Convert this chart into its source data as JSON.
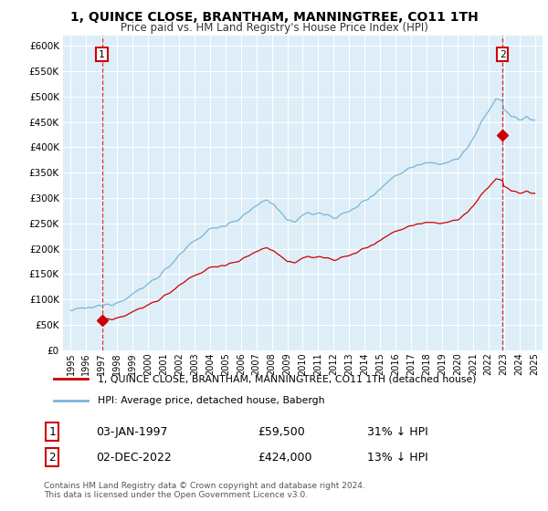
{
  "title": "1, QUINCE CLOSE, BRANTHAM, MANNINGTREE, CO11 1TH",
  "subtitle": "Price paid vs. HM Land Registry's House Price Index (HPI)",
  "legend_line1": "1, QUINCE CLOSE, BRANTHAM, MANNINGTREE, CO11 1TH (detached house)",
  "legend_line2": "HPI: Average price, detached house, Babergh",
  "sale1_date": "03-JAN-1997",
  "sale1_price": "£59,500",
  "sale1_hpi": "31% ↓ HPI",
  "sale2_date": "02-DEC-2022",
  "sale2_price": "£424,000",
  "sale2_hpi": "13% ↓ HPI",
  "footnote": "Contains HM Land Registry data © Crown copyright and database right 2024.\nThis data is licensed under the Open Government Licence v3.0.",
  "hpi_color": "#7ab4d8",
  "sale_color": "#cc0000",
  "background_color": "#ddeef8",
  "grid_color": "#ffffff",
  "ylim": [
    0,
    620000
  ],
  "yticks": [
    0,
    50000,
    100000,
    150000,
    200000,
    250000,
    300000,
    350000,
    400000,
    450000,
    500000,
    550000,
    600000
  ],
  "ytick_labels": [
    "£0",
    "£50K",
    "£100K",
    "£150K",
    "£200K",
    "£250K",
    "£300K",
    "£350K",
    "£400K",
    "£450K",
    "£500K",
    "£550K",
    "£600K"
  ],
  "xlim_start": 1994.5,
  "xlim_end": 2025.5,
  "sale1_x": 1997.01,
  "sale1_y": 59500,
  "sale2_x": 2022.92,
  "sale2_y": 424000
}
